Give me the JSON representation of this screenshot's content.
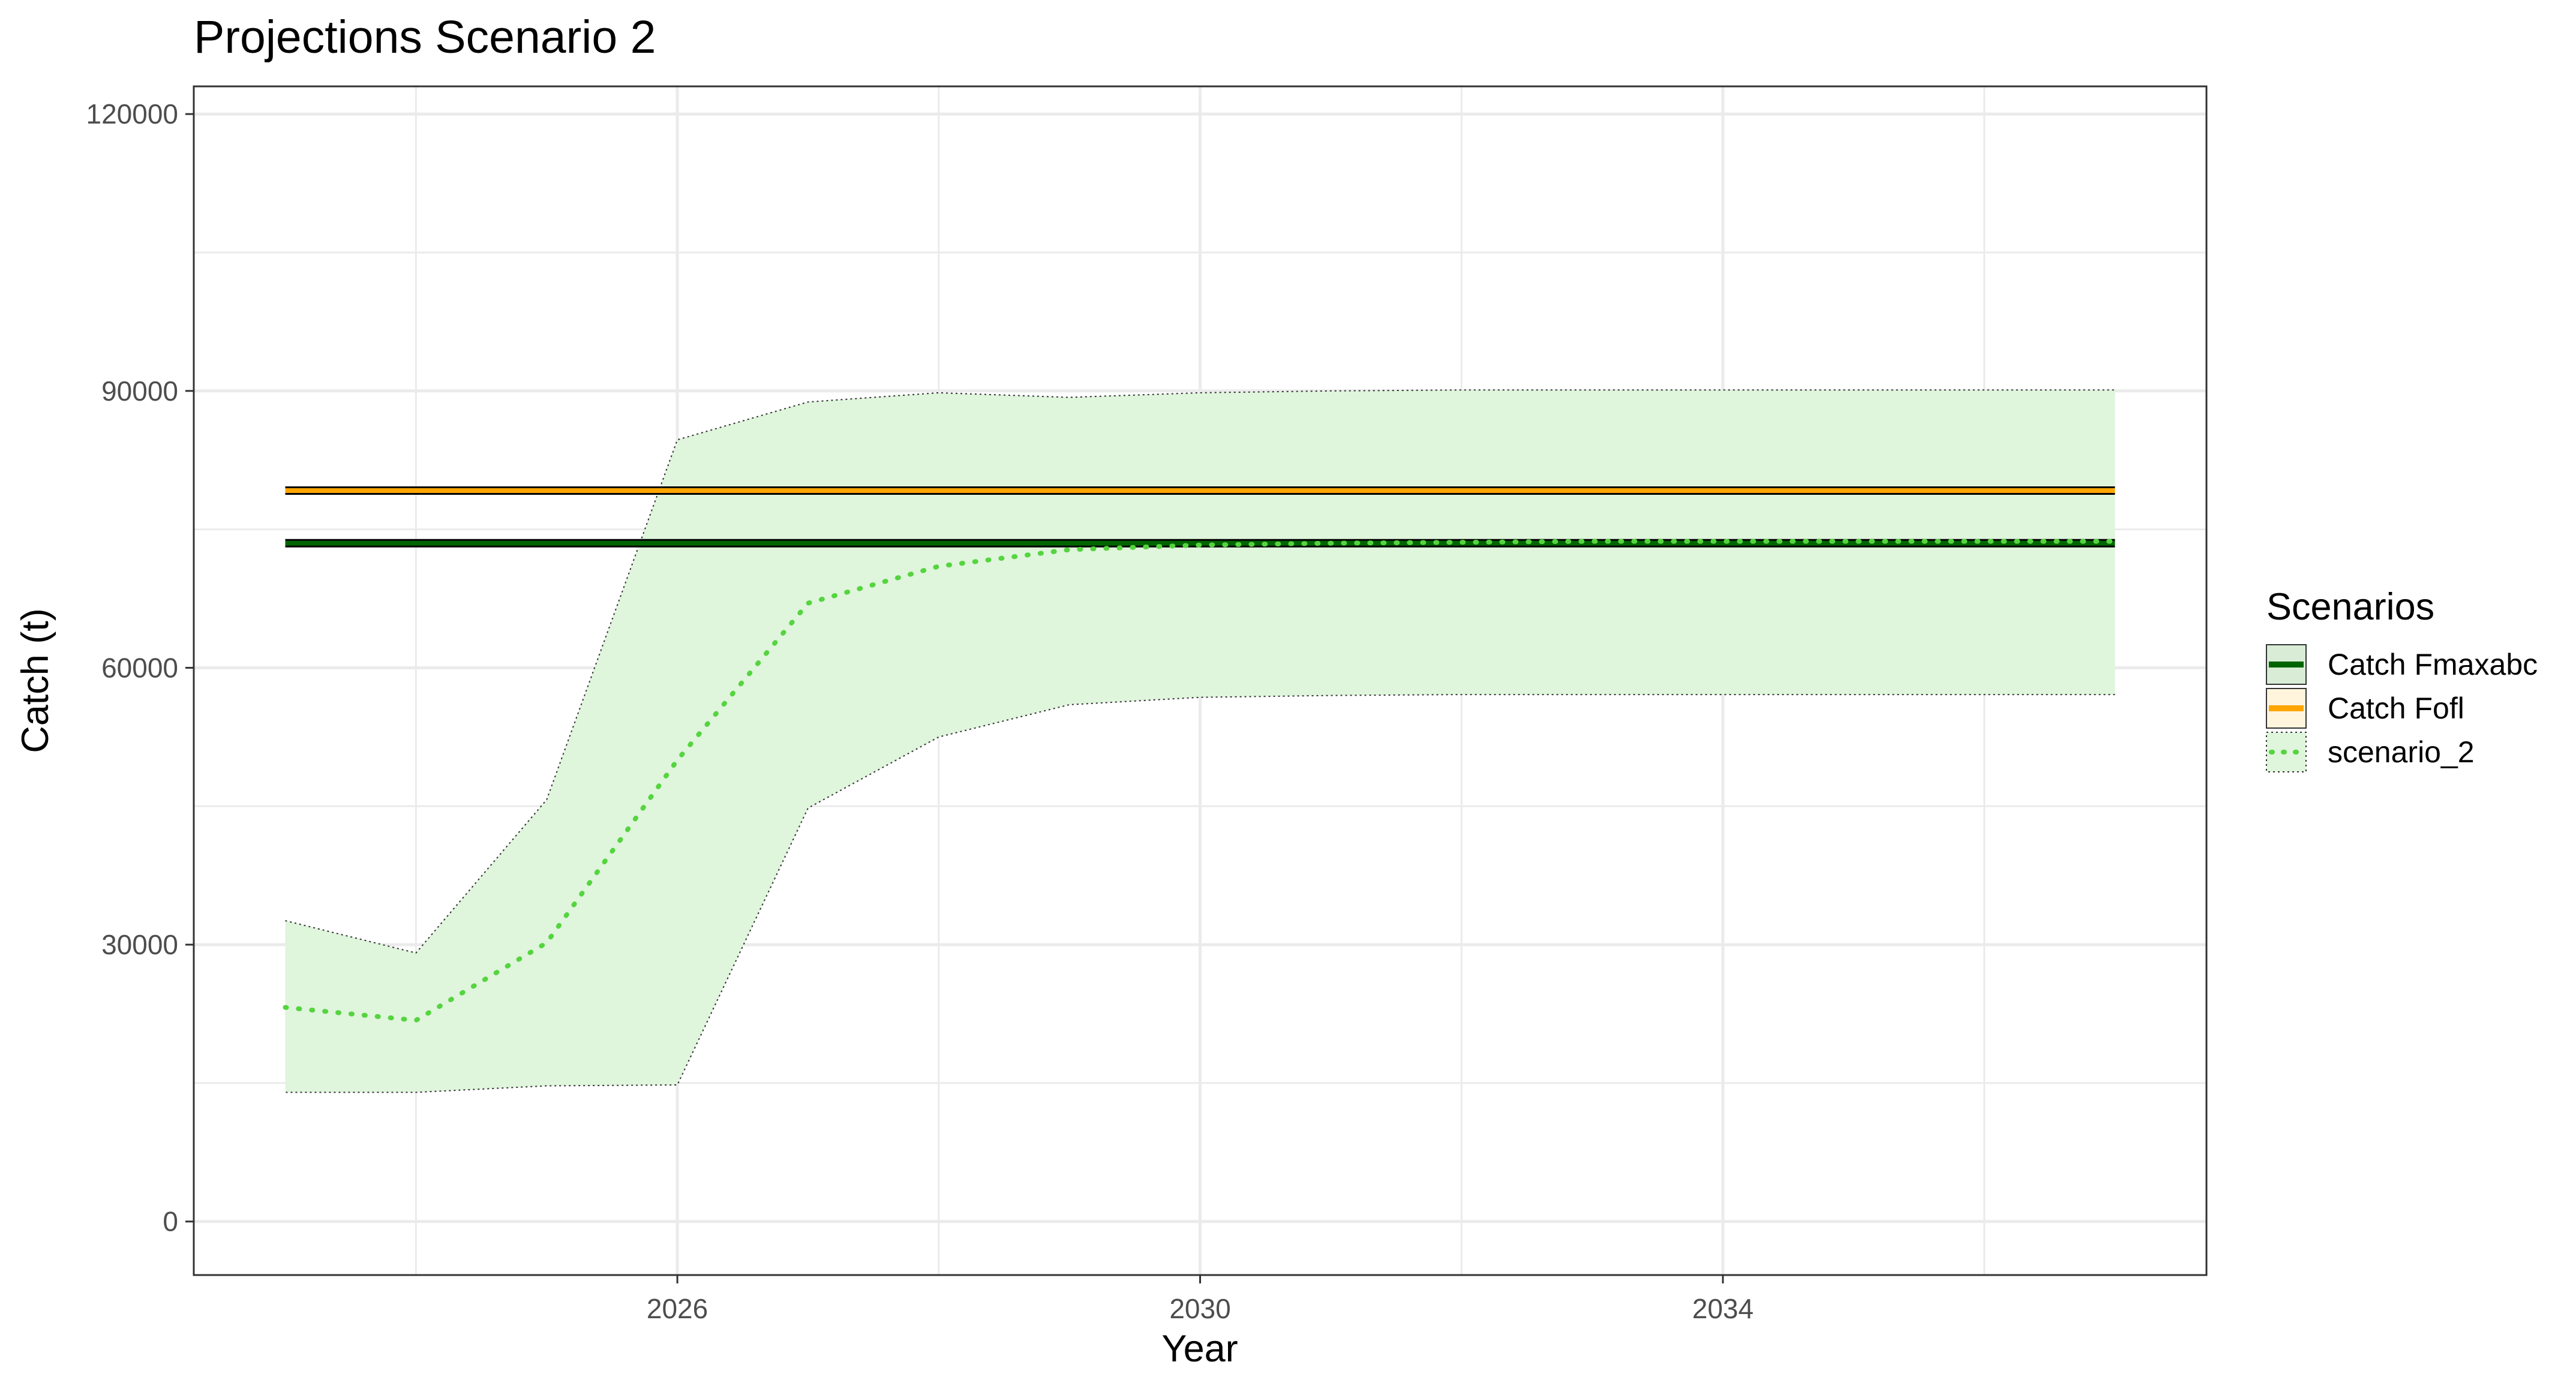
{
  "chart_data": {
    "type": "line",
    "title": "Projections Scenario 2",
    "xlabel": "Year",
    "ylabel": "Catch (t)",
    "xlim": [
      2022.3,
      2037.7
    ],
    "ylim": [
      -5800,
      123000
    ],
    "x_ticks": [
      2026,
      2030,
      2034
    ],
    "x_tick_labels": [
      "2026",
      "2030",
      "2034"
    ],
    "x_minor_gridlines": [
      2024,
      2028,
      2032,
      2036
    ],
    "y_ticks": [
      0,
      30000,
      60000,
      90000,
      120000
    ],
    "y_tick_labels": [
      "0",
      "30000",
      "60000",
      "90000",
      "120000"
    ],
    "y_minor_gridlines": [
      15000,
      45000,
      75000,
      105000
    ],
    "grid": true,
    "legend": {
      "title": "Scenarios",
      "position": "right",
      "entries": [
        "Catch Fmaxabc",
        "Catch Fofl",
        "scenario_2"
      ]
    },
    "x": [
      2023,
      2024,
      2025,
      2026,
      2027,
      2028,
      2029,
      2030,
      2031,
      2032,
      2033,
      2034,
      2035,
      2036,
      2037
    ],
    "series": [
      {
        "name": "Catch Fmaxabc",
        "style": "solid",
        "color": "#006400",
        "values": [
          73500,
          73500,
          73500,
          73500,
          73500,
          73500,
          73500,
          73500,
          73500,
          73500,
          73500,
          73500,
          73500,
          73500,
          73500
        ]
      },
      {
        "name": "Catch Fofl",
        "style": "solid",
        "color": "#FFA500",
        "values": [
          79200,
          79200,
          79200,
          79200,
          79200,
          79200,
          79200,
          79200,
          79200,
          79200,
          79200,
          79200,
          79200,
          79200,
          79200
        ]
      },
      {
        "name": "scenario_2",
        "style": "dotted",
        "color": "#55D43F",
        "values": [
          23200,
          21800,
          30200,
          50000,
          67000,
          71000,
          72800,
          73300,
          73500,
          73600,
          73700,
          73700,
          73700,
          73700,
          73700
        ],
        "band_lower": [
          14000,
          14000,
          14700,
          14800,
          44800,
          52500,
          56000,
          56800,
          57000,
          57100,
          57100,
          57100,
          57100,
          57100,
          57100
        ],
        "band_upper": [
          32600,
          29100,
          45700,
          84700,
          88800,
          89800,
          89300,
          89800,
          90000,
          90100,
          90100,
          90100,
          90100,
          90100,
          90100
        ],
        "band_color": "#DFF5DC"
      }
    ]
  }
}
